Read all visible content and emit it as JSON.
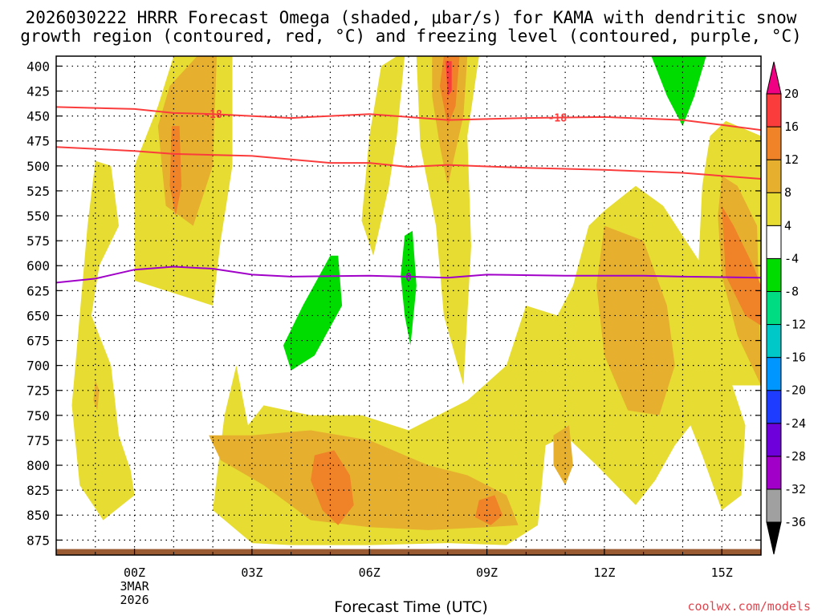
{
  "title_line1": "2026030222 HRRR Forecast Omega (shaded, μbar/s) for KAMA with dendritic snow",
  "title_line2": "growth region (contoured, red, °C) and freezing level (contoured, purple, °C)",
  "xlabel": "Forecast Time (UTC)",
  "credit": "coolwx.com/models",
  "chart_data": {
    "type": "time-height cross section (filled contour)",
    "x_unit": "hours from 00Z 3 Mar 2026",
    "x_range": [
      -2.0,
      16.0
    ],
    "y_unit": "hPa",
    "y_range": [
      390,
      890
    ],
    "y_ticks": [
      400,
      425,
      450,
      475,
      500,
      525,
      550,
      575,
      600,
      625,
      650,
      675,
      700,
      725,
      750,
      775,
      800,
      825,
      850,
      875
    ],
    "x_ticks": [
      {
        "h": 0,
        "label": "00Z",
        "sub1": "3MAR",
        "sub2": "2026"
      },
      {
        "h": 3,
        "label": "03Z"
      },
      {
        "h": 6,
        "label": "06Z"
      },
      {
        "h": 9,
        "label": "09Z"
      },
      {
        "h": 12,
        "label": "12Z"
      },
      {
        "h": 15,
        "label": "15Z"
      }
    ],
    "colorbar": {
      "levels": [
        -36,
        -32,
        -28,
        -24,
        -20,
        -16,
        -12,
        -8,
        -4,
        4,
        8,
        12,
        16,
        20
      ],
      "colors": [
        "#000000",
        "#a0a0a0",
        "#a000c8",
        "#6e00dc",
        "#1e3cff",
        "#0096ff",
        "#00c8c8",
        "#00dc82",
        "#00dc00",
        "#ffffff",
        "#e6dc32",
        "#e6af2d",
        "#f08228",
        "#fa3c3c",
        "#f00082"
      ]
    },
    "shaded_regions": [
      {
        "name": "upper-left column",
        "color": "#e6dc32",
        "pts": [
          [
            1.0,
            390
          ],
          [
            2.5,
            390
          ],
          [
            2.5,
            500
          ],
          [
            2.2,
            575
          ],
          [
            2.0,
            640
          ],
          [
            0.0,
            615
          ],
          [
            0.0,
            500
          ],
          [
            0.6,
            440
          ]
        ]
      },
      {
        "name": "upper-left column",
        "color": "#e6af2d",
        "pts": [
          [
            1.6,
            390
          ],
          [
            2.1,
            390
          ],
          [
            2.0,
            500
          ],
          [
            1.5,
            560
          ],
          [
            0.8,
            540
          ],
          [
            0.6,
            460
          ],
          [
            0.9,
            420
          ]
        ]
      },
      {
        "name": "upper-left column",
        "color": "#f08228",
        "pts": [
          [
            0.95,
            460
          ],
          [
            1.15,
            460
          ],
          [
            1.2,
            520
          ],
          [
            1.05,
            550
          ],
          [
            0.9,
            520
          ]
        ]
      },
      {
        "name": "left low column",
        "color": "#e6dc32",
        "pts": [
          [
            -1.0,
            495
          ],
          [
            -0.6,
            500
          ],
          [
            -0.4,
            560
          ],
          [
            -0.9,
            600
          ],
          [
            -1.1,
            650
          ],
          [
            -0.6,
            700
          ],
          [
            -0.4,
            770
          ],
          [
            -0.1,
            805
          ],
          [
            0.0,
            830
          ],
          [
            -0.8,
            855
          ],
          [
            -1.4,
            820
          ],
          [
            -1.6,
            740
          ],
          [
            -1.4,
            650
          ],
          [
            -1.2,
            560
          ]
        ]
      },
      {
        "name": "left low column",
        "color": "#e6af2d",
        "pts": [
          [
            -1.0,
            715
          ],
          [
            -0.9,
            725
          ],
          [
            -0.95,
            745
          ],
          [
            -1.05,
            735
          ]
        ]
      },
      {
        "name": "06Z upper column",
        "color": "#e6dc32",
        "pts": [
          [
            5.8,
            555
          ],
          [
            6.0,
            470
          ],
          [
            6.3,
            400
          ],
          [
            6.7,
            390
          ],
          [
            6.9,
            390
          ],
          [
            6.7,
            470
          ],
          [
            6.5,
            520
          ],
          [
            6.1,
            590
          ]
        ]
      },
      {
        "name": "07-09Z upper column",
        "color": "#e6dc32",
        "pts": [
          [
            7.2,
            390
          ],
          [
            8.8,
            390
          ],
          [
            8.5,
            470
          ],
          [
            8.6,
            580
          ],
          [
            8.4,
            720
          ],
          [
            7.9,
            650
          ],
          [
            7.7,
            560
          ],
          [
            7.3,
            480
          ]
        ]
      },
      {
        "name": "07-09Z upper column",
        "color": "#e6af2d",
        "pts": [
          [
            7.6,
            390
          ],
          [
            8.5,
            390
          ],
          [
            8.4,
            450
          ],
          [
            8.0,
            520
          ],
          [
            7.8,
            480
          ],
          [
            7.6,
            430
          ]
        ]
      },
      {
        "name": "07-09Z upper column",
        "color": "#f08228",
        "pts": [
          [
            7.9,
            390
          ],
          [
            8.3,
            390
          ],
          [
            8.2,
            440
          ],
          [
            8.0,
            460
          ],
          [
            7.8,
            420
          ]
        ]
      },
      {
        "name": "07-09Z upper column",
        "color": "#fa3c3c",
        "pts": [
          [
            7.95,
            395
          ],
          [
            8.1,
            395
          ],
          [
            8.1,
            425
          ],
          [
            8.0,
            430
          ]
        ]
      },
      {
        "name": "lower band",
        "color": "#e6dc32",
        "pts": [
          [
            2.0,
            845
          ],
          [
            2.3,
            750
          ],
          [
            2.6,
            700
          ],
          [
            2.9,
            760
          ],
          [
            3.3,
            740
          ],
          [
            4.5,
            750
          ],
          [
            5.8,
            750
          ],
          [
            7.0,
            765
          ],
          [
            8.5,
            735
          ],
          [
            9.5,
            700
          ],
          [
            10.0,
            640
          ],
          [
            10.8,
            650
          ],
          [
            11.2,
            620
          ],
          [
            11.6,
            560
          ],
          [
            12.0,
            545
          ],
          [
            12.8,
            520
          ],
          [
            13.5,
            540
          ],
          [
            14.5,
            600
          ],
          [
            14.9,
            650
          ],
          [
            15.1,
            700
          ],
          [
            15.6,
            760
          ],
          [
            15.5,
            830
          ],
          [
            15.0,
            845
          ],
          [
            14.5,
            790
          ],
          [
            14.2,
            760
          ],
          [
            13.8,
            780
          ],
          [
            13.3,
            815
          ],
          [
            12.8,
            840
          ],
          [
            11.8,
            800
          ],
          [
            11.0,
            770
          ],
          [
            10.5,
            780
          ],
          [
            10.3,
            860
          ],
          [
            9.5,
            880
          ],
          [
            8.0,
            878
          ],
          [
            6.0,
            880
          ],
          [
            4.0,
            880
          ],
          [
            3.0,
            878
          ]
        ]
      },
      {
        "name": "lower band",
        "color": "#e6af2d",
        "pts": [
          [
            1.9,
            770
          ],
          [
            3.0,
            770
          ],
          [
            4.5,
            765
          ],
          [
            6.0,
            775
          ],
          [
            7.5,
            800
          ],
          [
            8.5,
            810
          ],
          [
            9.5,
            830
          ],
          [
            9.8,
            860
          ],
          [
            9.0,
            862
          ],
          [
            7.5,
            865
          ],
          [
            6.0,
            862
          ],
          [
            4.5,
            855
          ],
          [
            3.3,
            820
          ],
          [
            2.2,
            795
          ]
        ]
      },
      {
        "name": "lower band",
        "color": "#f08228",
        "pts": [
          [
            4.6,
            790
          ],
          [
            5.1,
            785
          ],
          [
            5.5,
            810
          ],
          [
            5.6,
            840
          ],
          [
            5.2,
            860
          ],
          [
            4.8,
            845
          ],
          [
            4.5,
            815
          ]
        ]
      },
      {
        "name": "lower band",
        "color": "#f08228",
        "pts": [
          [
            8.8,
            835
          ],
          [
            9.2,
            830
          ],
          [
            9.4,
            850
          ],
          [
            9.1,
            860
          ],
          [
            8.7,
            852
          ]
        ]
      },
      {
        "name": "10-14Z middle",
        "color": "#e6af2d",
        "pts": [
          [
            12.0,
            560
          ],
          [
            13.0,
            575
          ],
          [
            13.6,
            640
          ],
          [
            13.8,
            700
          ],
          [
            13.4,
            750
          ],
          [
            12.6,
            745
          ],
          [
            12.0,
            690
          ],
          [
            11.8,
            620
          ]
        ]
      },
      {
        "name": "10-14Z middle",
        "color": "#e6af2d",
        "pts": [
          [
            10.7,
            770
          ],
          [
            11.1,
            760
          ],
          [
            11.2,
            800
          ],
          [
            11.0,
            820
          ],
          [
            10.7,
            800
          ]
        ]
      },
      {
        "name": "right upper column",
        "color": "#e6dc32",
        "pts": [
          [
            14.7,
            470
          ],
          [
            15.1,
            455
          ],
          [
            16.0,
            470
          ],
          [
            16.0,
            720
          ],
          [
            15.2,
            720
          ],
          [
            14.8,
            650
          ],
          [
            14.4,
            600
          ],
          [
            14.5,
            520
          ]
        ]
      },
      {
        "name": "right upper column",
        "color": "#e6af2d",
        "pts": [
          [
            15.0,
            510
          ],
          [
            15.4,
            520
          ],
          [
            15.9,
            560
          ],
          [
            16.0,
            720
          ],
          [
            15.4,
            670
          ],
          [
            15.0,
            610
          ],
          [
            14.9,
            550
          ]
        ]
      },
      {
        "name": "right upper column",
        "color": "#f08228",
        "pts": [
          [
            15.0,
            540
          ],
          [
            15.3,
            560
          ],
          [
            15.8,
            600
          ],
          [
            16.0,
            620
          ],
          [
            16.0,
            660
          ],
          [
            15.6,
            650
          ],
          [
            15.1,
            610
          ]
        ]
      },
      {
        "name": "upward motion",
        "color": "#00dc00",
        "pts": [
          [
            13.2,
            390
          ],
          [
            14.6,
            390
          ],
          [
            14.3,
            430
          ],
          [
            14.0,
            460
          ],
          [
            13.6,
            430
          ]
        ]
      },
      {
        "name": "upward motion",
        "color": "#00dc00",
        "pts": [
          [
            5.0,
            590
          ],
          [
            5.2,
            590
          ],
          [
            5.3,
            640
          ],
          [
            4.6,
            690
          ],
          [
            4.0,
            705
          ],
          [
            3.8,
            680
          ],
          [
            4.3,
            640
          ]
        ]
      },
      {
        "name": "upward motion",
        "color": "#00dc00",
        "pts": [
          [
            6.9,
            570
          ],
          [
            7.1,
            565
          ],
          [
            7.2,
            620
          ],
          [
            7.05,
            680
          ],
          [
            6.9,
            650
          ],
          [
            6.8,
            610
          ]
        ]
      }
    ],
    "contours": [
      {
        "name": "-18 C isotherm (upper)",
        "color": "#fa3c3c",
        "label": "-18",
        "label_h": 2.0,
        "label_index": 0,
        "pts": [
          [
            -2,
            441
          ],
          [
            0,
            443
          ],
          [
            1,
            447
          ],
          [
            2,
            448
          ],
          [
            4,
            452
          ],
          [
            6,
            448
          ],
          [
            8,
            454
          ],
          [
            10,
            452
          ],
          [
            12,
            451
          ],
          [
            14,
            454
          ],
          [
            15,
            459
          ],
          [
            16,
            464
          ]
        ]
      },
      {
        "name": "-18 C isotherm label",
        "color": "#fa3c3c",
        "label": "-18",
        "label_h": 10.8,
        "label_index": 1,
        "pts": []
      },
      {
        "name": "-12 C isotherm (lower)",
        "color": "#fa3c3c",
        "pts": [
          [
            -2,
            481
          ],
          [
            0,
            485
          ],
          [
            1,
            488
          ],
          [
            3,
            490
          ],
          [
            5,
            497
          ],
          [
            6,
            497
          ],
          [
            7,
            501
          ],
          [
            8,
            499
          ],
          [
            10,
            502
          ],
          [
            12,
            504
          ],
          [
            14,
            507
          ],
          [
            16,
            513
          ]
        ]
      },
      {
        "name": "0 C freezing level",
        "color": "#a000c8",
        "label": "0",
        "label_h": 7.0,
        "pts": [
          [
            -2,
            617
          ],
          [
            -1,
            613
          ],
          [
            0,
            604
          ],
          [
            1,
            601
          ],
          [
            2,
            603
          ],
          [
            3,
            609
          ],
          [
            4,
            611
          ],
          [
            6,
            610
          ],
          [
            8,
            612
          ],
          [
            9,
            609
          ],
          [
            11,
            610
          ],
          [
            13,
            610
          ],
          [
            14,
            611
          ],
          [
            16,
            612
          ]
        ]
      }
    ]
  }
}
